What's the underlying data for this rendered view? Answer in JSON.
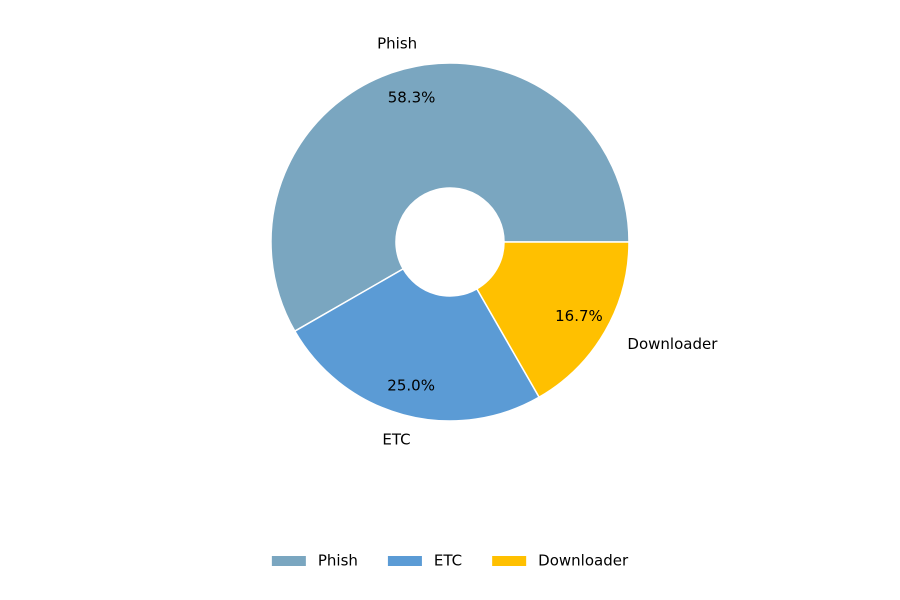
{
  "chart_data": {
    "type": "pie",
    "categories": [
      "Phish",
      "ETC",
      "Downloader"
    ],
    "values": [
      58.3,
      25.0,
      16.7
    ],
    "value_labels": [
      "58.3%",
      "25.0%",
      "16.7%"
    ],
    "colors": [
      "#7aa6c0",
      "#5b9bd5",
      "#ffc000"
    ],
    "legend": "bottom"
  }
}
